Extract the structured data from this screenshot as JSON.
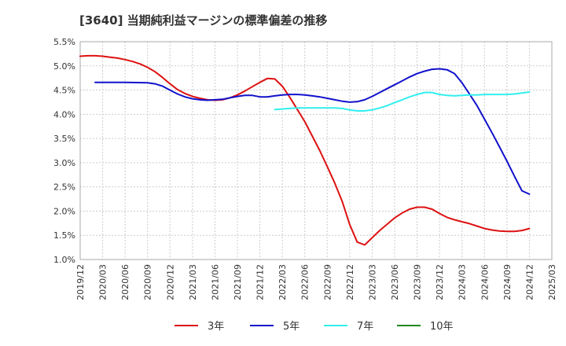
{
  "chart_data": {
    "type": "line",
    "title": "[3640]  当期純利益マージンの標準偏差の推移",
    "xlabel": "",
    "ylabel": "",
    "ylim": [
      1.0,
      5.5
    ],
    "y_ticks": [
      "1.0%",
      "1.5%",
      "2.0%",
      "2.5%",
      "3.0%",
      "3.5%",
      "4.0%",
      "4.5%",
      "5.0%",
      "5.5%"
    ],
    "x_ticks": [
      "2019/12",
      "2020/03",
      "2020/06",
      "2020/09",
      "2020/12",
      "2021/03",
      "2021/06",
      "2021/09",
      "2021/12",
      "2022/03",
      "2022/06",
      "2022/09",
      "2022/12",
      "2023/03",
      "2023/06",
      "2023/09",
      "2023/12",
      "2024/03",
      "2024/06",
      "2024/09",
      "2024/12",
      "2025/03"
    ],
    "grid": true,
    "legend_position": "bottom",
    "colors": {
      "s3": "#dd1111",
      "s5": "#1111cc",
      "s7": "#33eeee",
      "s10": "#228822"
    },
    "series": [
      {
        "name": "3年",
        "color": "#dd1111",
        "points": [
          [
            "2019/12",
            5.2
          ],
          [
            "2020/01",
            5.21
          ],
          [
            "2020/02",
            5.21
          ],
          [
            "2020/03",
            5.2
          ],
          [
            "2020/04",
            5.18
          ],
          [
            "2020/05",
            5.16
          ],
          [
            "2020/06",
            5.13
          ],
          [
            "2020/07",
            5.09
          ],
          [
            "2020/08",
            5.04
          ],
          [
            "2020/09",
            4.97
          ],
          [
            "2020/10",
            4.88
          ],
          [
            "2020/11",
            4.76
          ],
          [
            "2020/12",
            4.63
          ],
          [
            "2021/01",
            4.51
          ],
          [
            "2021/02",
            4.43
          ],
          [
            "2021/03",
            4.37
          ],
          [
            "2021/04",
            4.33
          ],
          [
            "2021/05",
            4.3
          ],
          [
            "2021/06",
            4.29
          ],
          [
            "2021/07",
            4.3
          ],
          [
            "2021/08",
            4.34
          ],
          [
            "2021/09",
            4.4
          ],
          [
            "2021/10",
            4.48
          ],
          [
            "2021/11",
            4.57
          ],
          [
            "2021/12",
            4.66
          ],
          [
            "2022/01",
            4.74
          ],
          [
            "2022/02",
            4.73
          ],
          [
            "2022/03",
            4.58
          ],
          [
            "2022/04",
            4.35
          ],
          [
            "2022/05",
            4.1
          ],
          [
            "2022/06",
            3.85
          ],
          [
            "2022/07",
            3.55
          ],
          [
            "2022/08",
            3.25
          ],
          [
            "2022/09",
            2.92
          ],
          [
            "2022/10",
            2.58
          ],
          [
            "2022/11",
            2.2
          ],
          [
            "2022/12",
            1.72
          ],
          [
            "2023/01",
            1.36
          ],
          [
            "2023/02",
            1.3
          ],
          [
            "2023/03",
            1.45
          ],
          [
            "2023/04",
            1.6
          ],
          [
            "2023/05",
            1.73
          ],
          [
            "2023/06",
            1.86
          ],
          [
            "2023/07",
            1.96
          ],
          [
            "2023/08",
            2.04
          ],
          [
            "2023/09",
            2.08
          ],
          [
            "2023/10",
            2.08
          ],
          [
            "2023/11",
            2.04
          ],
          [
            "2023/12",
            1.95
          ],
          [
            "2024/01",
            1.87
          ],
          [
            "2024/02",
            1.82
          ],
          [
            "2024/03",
            1.78
          ],
          [
            "2024/04",
            1.74
          ],
          [
            "2024/05",
            1.69
          ],
          [
            "2024/06",
            1.64
          ],
          [
            "2024/07",
            1.61
          ],
          [
            "2024/08",
            1.59
          ],
          [
            "2024/09",
            1.58
          ],
          [
            "2024/10",
            1.58
          ],
          [
            "2024/11",
            1.6
          ],
          [
            "2024/12",
            1.64
          ]
        ]
      },
      {
        "name": "5年",
        "color": "#1111cc",
        "points": [
          [
            "2020/02",
            4.66
          ],
          [
            "2020/03",
            4.66
          ],
          [
            "2020/06",
            4.66
          ],
          [
            "2020/09",
            4.65
          ],
          [
            "2020/10",
            4.63
          ],
          [
            "2020/11",
            4.58
          ],
          [
            "2020/12",
            4.5
          ],
          [
            "2021/01",
            4.42
          ],
          [
            "2021/02",
            4.36
          ],
          [
            "2021/03",
            4.32
          ],
          [
            "2021/04",
            4.3
          ],
          [
            "2021/05",
            4.29
          ],
          [
            "2021/06",
            4.3
          ],
          [
            "2021/07",
            4.31
          ],
          [
            "2021/08",
            4.34
          ],
          [
            "2021/09",
            4.37
          ],
          [
            "2021/10",
            4.39
          ],
          [
            "2021/11",
            4.39
          ],
          [
            "2021/12",
            4.36
          ],
          [
            "2022/01",
            4.36
          ],
          [
            "2022/02",
            4.38
          ],
          [
            "2022/03",
            4.4
          ],
          [
            "2022/04",
            4.41
          ],
          [
            "2022/05",
            4.41
          ],
          [
            "2022/06",
            4.4
          ],
          [
            "2022/07",
            4.38
          ],
          [
            "2022/08",
            4.36
          ],
          [
            "2022/09",
            4.33
          ],
          [
            "2022/10",
            4.3
          ],
          [
            "2022/11",
            4.27
          ],
          [
            "2022/12",
            4.25
          ],
          [
            "2023/01",
            4.26
          ],
          [
            "2023/02",
            4.3
          ],
          [
            "2023/03",
            4.37
          ],
          [
            "2023/04",
            4.45
          ],
          [
            "2023/05",
            4.53
          ],
          [
            "2023/06",
            4.61
          ],
          [
            "2023/07",
            4.69
          ],
          [
            "2023/08",
            4.77
          ],
          [
            "2023/09",
            4.84
          ],
          [
            "2023/10",
            4.89
          ],
          [
            "2023/11",
            4.93
          ],
          [
            "2023/12",
            4.94
          ],
          [
            "2024/01",
            4.92
          ],
          [
            "2024/02",
            4.84
          ],
          [
            "2024/03",
            4.65
          ],
          [
            "2024/04",
            4.42
          ],
          [
            "2024/05",
            4.18
          ],
          [
            "2024/06",
            3.9
          ],
          [
            "2024/07",
            3.62
          ],
          [
            "2024/08",
            3.33
          ],
          [
            "2024/09",
            3.03
          ],
          [
            "2024/10",
            2.72
          ],
          [
            "2024/11",
            2.42
          ],
          [
            "2024/12",
            2.35
          ]
        ]
      },
      {
        "name": "7年",
        "color": "#33eeee",
        "points": [
          [
            "2022/02",
            4.1
          ],
          [
            "2022/03",
            4.11
          ],
          [
            "2022/04",
            4.12
          ],
          [
            "2022/05",
            4.13
          ],
          [
            "2022/06",
            4.13
          ],
          [
            "2022/07",
            4.13
          ],
          [
            "2022/08",
            4.13
          ],
          [
            "2022/09",
            4.13
          ],
          [
            "2022/10",
            4.13
          ],
          [
            "2022/11",
            4.12
          ],
          [
            "2022/12",
            4.09
          ],
          [
            "2023/01",
            4.07
          ],
          [
            "2023/02",
            4.07
          ],
          [
            "2023/03",
            4.09
          ],
          [
            "2023/04",
            4.13
          ],
          [
            "2023/05",
            4.18
          ],
          [
            "2023/06",
            4.24
          ],
          [
            "2023/07",
            4.3
          ],
          [
            "2023/08",
            4.36
          ],
          [
            "2023/09",
            4.41
          ],
          [
            "2023/10",
            4.45
          ],
          [
            "2023/11",
            4.45
          ],
          [
            "2023/12",
            4.41
          ],
          [
            "2024/01",
            4.39
          ],
          [
            "2024/02",
            4.38
          ],
          [
            "2024/03",
            4.39
          ],
          [
            "2024/04",
            4.4
          ],
          [
            "2024/05",
            4.4
          ],
          [
            "2024/06",
            4.41
          ],
          [
            "2024/07",
            4.41
          ],
          [
            "2024/08",
            4.41
          ],
          [
            "2024/09",
            4.41
          ],
          [
            "2024/10",
            4.42
          ],
          [
            "2024/11",
            4.44
          ],
          [
            "2024/12",
            4.46
          ]
        ]
      },
      {
        "name": "10年",
        "color": "#228822",
        "points": []
      }
    ]
  }
}
